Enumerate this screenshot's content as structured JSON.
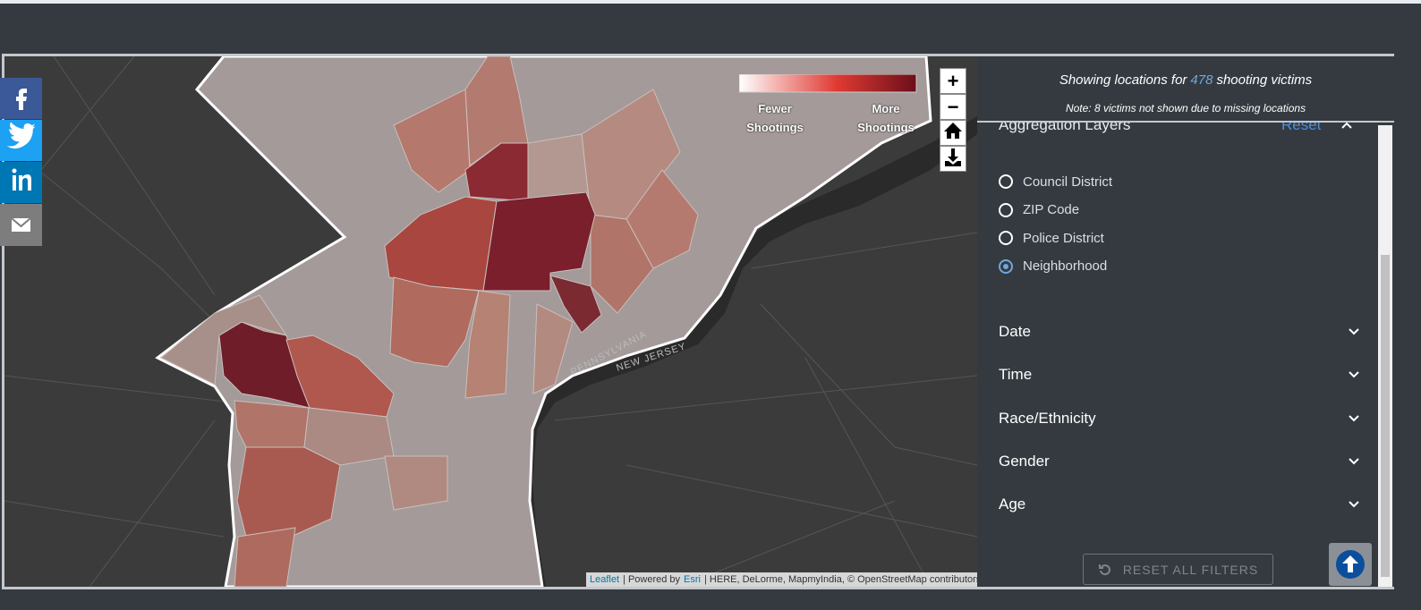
{
  "header": {
    "summary_prefix": "Showing locations for",
    "victim_count": 478,
    "summary_suffix": "shooting victims",
    "note": "Note: 8 victims not shown due to missing locations"
  },
  "legend": {
    "low": "Fewer Shootings",
    "high": "More Shootings"
  },
  "map": {
    "zoom_in": "+",
    "zoom_out": "−",
    "labels": [
      "PENNSYLVANIA",
      "NEW JERSEY"
    ],
    "attribution": {
      "leaflet": "Leaflet",
      "powered": "| Powered by",
      "esri": "Esri",
      "sources": "| HERE, DeLorme, MapmyIndia, © OpenStreetMap contributors"
    }
  },
  "panel": {
    "aggregation": {
      "title": "Aggregation Layers",
      "reset": "Reset",
      "options": [
        "Council District",
        "ZIP Code",
        "Police District",
        "Neighborhood"
      ],
      "selected": 3
    },
    "filters": [
      "Date",
      "Time",
      "Race/Ethnicity",
      "Gender",
      "Age"
    ],
    "reset_all": "RESET ALL FILTERS"
  }
}
